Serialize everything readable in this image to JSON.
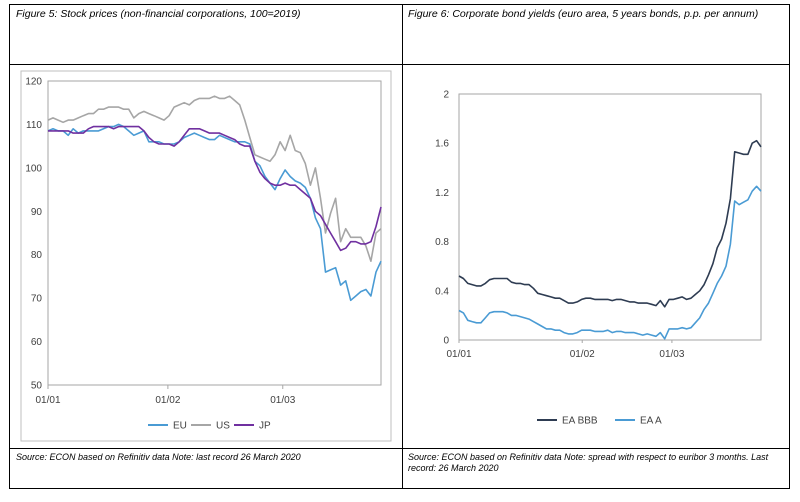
{
  "figures": {
    "left": {
      "title": "Figure 5: Stock prices (non-financial corporations, 100=2019)",
      "source": "Source: ECON based on Refinitiv data Note: last record 26 March 2020"
    },
    "right": {
      "title": "Figure 6: Corporate bond yields (euro area, 5 years bonds, p.p. per annum)",
      "source": "Source: ECON based on Refinitiv data Note: spread with respect to euribor 3 months. Last record: 26 March 2020"
    }
  },
  "chart_data": [
    {
      "type": "line",
      "x_ticks": [
        "01/01",
        "01/02",
        "01/03"
      ],
      "ylim": [
        50,
        120
      ],
      "y_ticks": [
        50,
        60,
        70,
        80,
        90,
        100,
        110,
        120
      ],
      "grid": false,
      "legend_position": "bottom",
      "series": [
        {
          "name": "EU",
          "color": "#4a9bd4",
          "values": [
            108.5,
            109,
            108.5,
            108.5,
            107.5,
            109,
            108,
            108.5,
            108.5,
            108.5,
            108.5,
            109,
            109.5,
            109.5,
            110,
            109.5,
            108.5,
            107.5,
            108,
            108.5,
            106,
            106,
            106,
            105.5,
            105.5,
            105.5,
            106,
            107,
            107.5,
            108,
            107.5,
            107,
            106.5,
            106.5,
            107.5,
            107,
            106.5,
            106,
            106,
            106,
            105.5,
            101.5,
            100.5,
            98,
            96.5,
            95,
            97.5,
            99.5,
            98,
            97,
            96.5,
            95.5,
            93,
            88.5,
            86,
            76,
            76.5,
            77,
            73,
            74,
            69.5,
            70.5,
            71.5,
            72,
            70.5,
            76,
            78.5
          ]
        },
        {
          "name": "US",
          "color": "#a6a6a6",
          "values": [
            111,
            111.5,
            111,
            110.5,
            111,
            111,
            111.5,
            112,
            112.5,
            112.5,
            113.5,
            113.5,
            114,
            114,
            114,
            113.5,
            113.5,
            111.5,
            112.5,
            113,
            112.5,
            112,
            111.5,
            111,
            112,
            114,
            114.5,
            115,
            114.5,
            115.5,
            116,
            116,
            116,
            116.5,
            116,
            116,
            116.5,
            115.5,
            114.5,
            111,
            107,
            103,
            102.5,
            102,
            101.5,
            103,
            106,
            104,
            107.5,
            104,
            103.5,
            101,
            96,
            100,
            93,
            85,
            89.5,
            93,
            83,
            86,
            84,
            84,
            84,
            82,
            78.5,
            85,
            86
          ]
        },
        {
          "name": "JP",
          "color": "#7030a0",
          "values": [
            108.5,
            108.5,
            108.5,
            108.5,
            108.5,
            108,
            108,
            108,
            109,
            109.5,
            109.5,
            109.5,
            109.5,
            109,
            109.5,
            109.5,
            109.5,
            109.5,
            109.5,
            108.5,
            107,
            106,
            105.5,
            105.5,
            105.5,
            105,
            106,
            107.5,
            109,
            109,
            109,
            108.5,
            108,
            108,
            108,
            107.5,
            107,
            106.5,
            105.5,
            105,
            105,
            101.5,
            99,
            97.5,
            96.5,
            96,
            96,
            96.5,
            96,
            96,
            95,
            94,
            93,
            90,
            89,
            87,
            85,
            83,
            81,
            81.5,
            83,
            83,
            82.5,
            82.5,
            83,
            86.5,
            91
          ]
        }
      ]
    },
    {
      "type": "line",
      "x_ticks": [
        "01/01",
        "01/02",
        "01/03"
      ],
      "ylim": [
        0,
        2
      ],
      "y_ticks": [
        0,
        0.4,
        0.8,
        1.2,
        1.6,
        2
      ],
      "grid": false,
      "legend_position": "bottom",
      "series": [
        {
          "name": "EA BBB",
          "color": "#2e3c52",
          "values": [
            0.52,
            0.5,
            0.46,
            0.45,
            0.44,
            0.44,
            0.46,
            0.49,
            0.5,
            0.5,
            0.5,
            0.5,
            0.47,
            0.46,
            0.46,
            0.45,
            0.45,
            0.42,
            0.38,
            0.37,
            0.36,
            0.35,
            0.34,
            0.34,
            0.32,
            0.3,
            0.3,
            0.31,
            0.33,
            0.34,
            0.34,
            0.33,
            0.33,
            0.33,
            0.33,
            0.32,
            0.33,
            0.33,
            0.32,
            0.31,
            0.31,
            0.3,
            0.3,
            0.3,
            0.29,
            0.28,
            0.32,
            0.27,
            0.33,
            0.33,
            0.34,
            0.35,
            0.33,
            0.34,
            0.37,
            0.4,
            0.45,
            0.53,
            0.62,
            0.75,
            0.82,
            0.95,
            1.15,
            1.53,
            1.52,
            1.51,
            1.51,
            1.6,
            1.62,
            1.57
          ]
        },
        {
          "name": "EA A",
          "color": "#4a9bd4",
          "values": [
            0.24,
            0.22,
            0.16,
            0.15,
            0.14,
            0.14,
            0.18,
            0.22,
            0.23,
            0.23,
            0.23,
            0.22,
            0.2,
            0.2,
            0.19,
            0.18,
            0.17,
            0.15,
            0.13,
            0.11,
            0.09,
            0.09,
            0.08,
            0.08,
            0.06,
            0.05,
            0.05,
            0.06,
            0.08,
            0.08,
            0.08,
            0.07,
            0.07,
            0.07,
            0.08,
            0.06,
            0.07,
            0.07,
            0.06,
            0.06,
            0.06,
            0.05,
            0.04,
            0.05,
            0.04,
            0.03,
            0.06,
            0.01,
            0.09,
            0.09,
            0.09,
            0.1,
            0.09,
            0.1,
            0.14,
            0.18,
            0.25,
            0.3,
            0.38,
            0.46,
            0.52,
            0.6,
            0.78,
            1.13,
            1.1,
            1.12,
            1.14,
            1.21,
            1.25,
            1.21
          ]
        }
      ]
    }
  ]
}
